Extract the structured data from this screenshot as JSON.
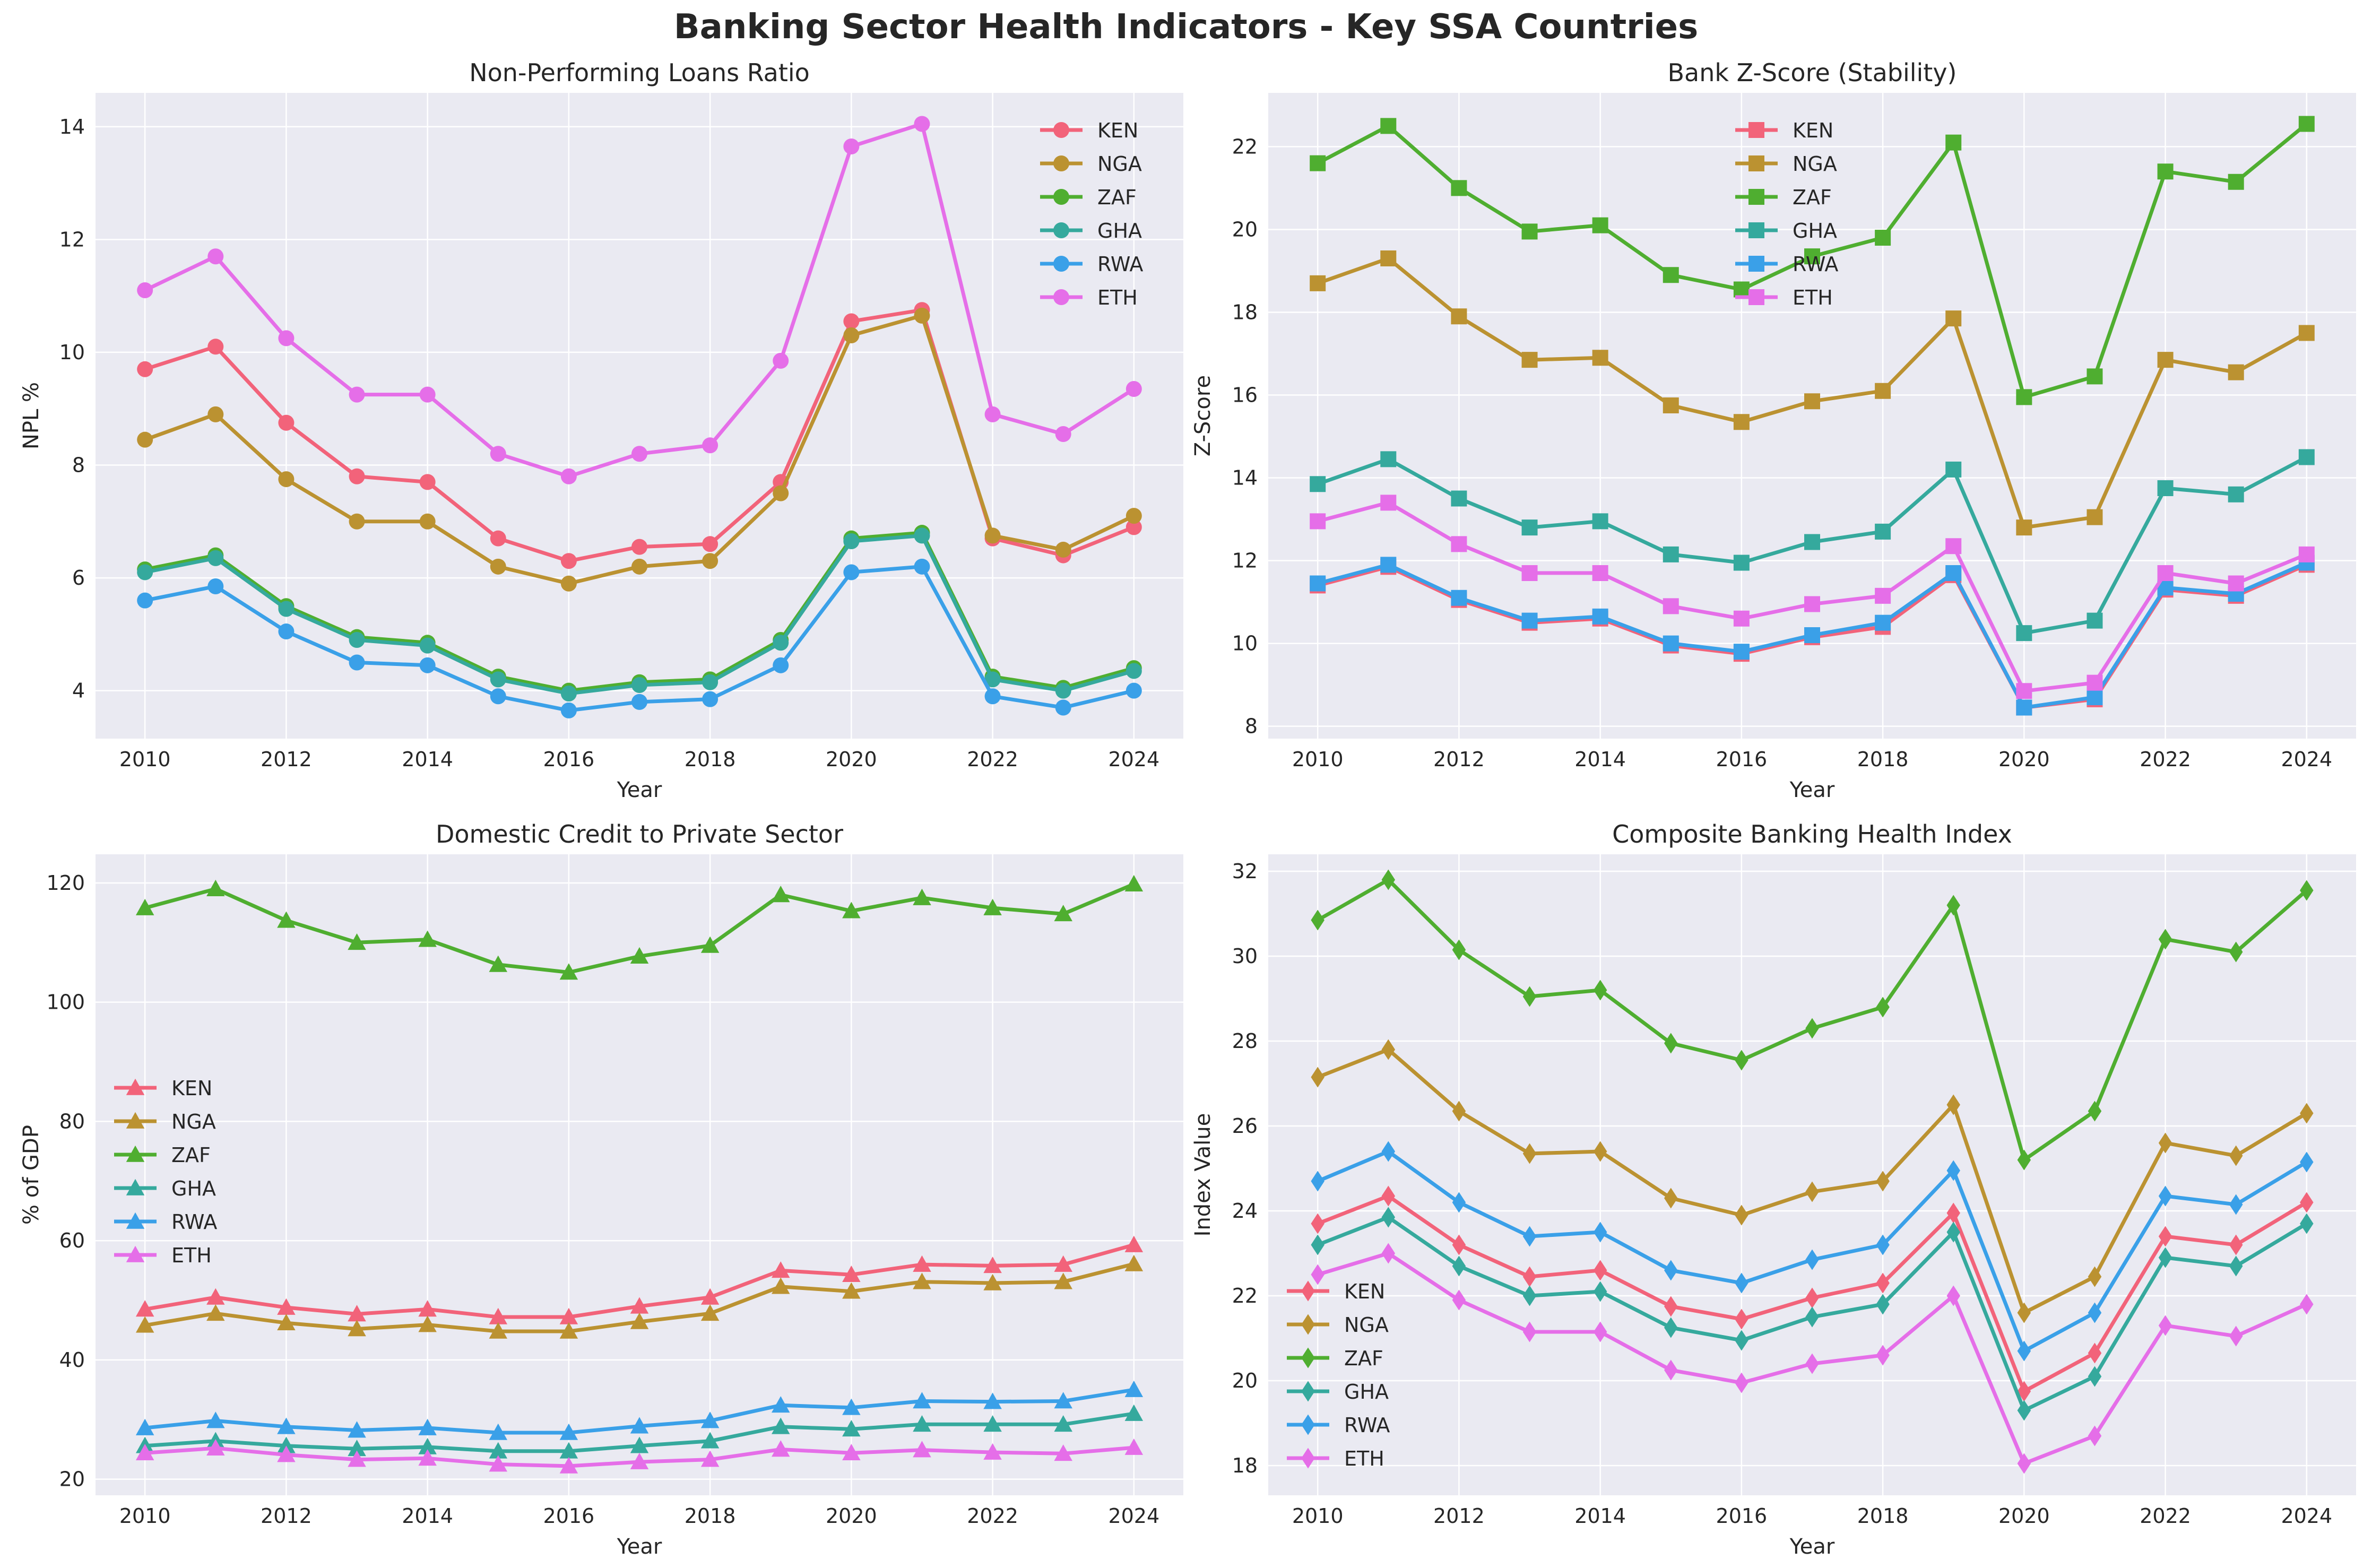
{
  "figure_title": "Banking Sector Health Indicators - Key SSA Countries",
  "colors": {
    "KEN": "#f2637a",
    "NGA": "#bb9231",
    "ZAF": "#4fae30",
    "GHA": "#35a99d",
    "RWA": "#3aa0e8",
    "ETH": "#e56ee8",
    "panel_bg": "#eaeaf2",
    "grid": "#ffffff"
  },
  "chart_data": [
    {
      "type": "line",
      "title": "Non-Performing Loans Ratio",
      "xlabel": "Year",
      "ylabel": "NPL %",
      "marker": "circle",
      "x": [
        2010,
        2011,
        2012,
        2013,
        2014,
        2015,
        2016,
        2017,
        2018,
        2019,
        2020,
        2021,
        2022,
        2023,
        2024
      ],
      "xlim": [
        2009.3,
        2024.7
      ],
      "ylim": [
        3.15,
        14.6
      ],
      "xticks": [
        2010,
        2012,
        2014,
        2016,
        2018,
        2020,
        2022,
        2024
      ],
      "yticks": [
        4,
        6,
        8,
        10,
        12,
        14
      ],
      "grid": true,
      "legend": "top-right",
      "series": [
        {
          "name": "KEN",
          "values": [
            9.7,
            10.1,
            8.75,
            7.8,
            7.7,
            6.7,
            6.3,
            6.55,
            6.6,
            7.7,
            10.55,
            10.75,
            6.7,
            6.4,
            6.9
          ]
        },
        {
          "name": "NGA",
          "values": [
            8.45,
            8.9,
            7.75,
            7.0,
            7.0,
            6.2,
            5.9,
            6.2,
            6.3,
            7.5,
            10.3,
            10.65,
            6.75,
            6.5,
            7.1
          ]
        },
        {
          "name": "ZAF",
          "values": [
            6.15,
            6.4,
            5.5,
            4.95,
            4.85,
            4.25,
            4.0,
            4.15,
            4.2,
            4.9,
            6.7,
            6.8,
            4.25,
            4.05,
            4.4
          ]
        },
        {
          "name": "GHA",
          "values": [
            6.1,
            6.35,
            5.45,
            4.9,
            4.8,
            4.2,
            3.95,
            4.1,
            4.15,
            4.85,
            6.65,
            6.75,
            4.2,
            4.0,
            4.35
          ]
        },
        {
          "name": "RWA",
          "values": [
            5.6,
            5.85,
            5.05,
            4.5,
            4.45,
            3.9,
            3.65,
            3.8,
            3.85,
            4.45,
            6.1,
            6.2,
            3.9,
            3.7,
            4.0
          ]
        },
        {
          "name": "ETH",
          "values": [
            11.1,
            11.7,
            10.25,
            9.25,
            9.25,
            8.2,
            7.8,
            8.2,
            8.35,
            9.85,
            13.65,
            14.05,
            8.9,
            8.55,
            9.35
          ]
        }
      ]
    },
    {
      "type": "line",
      "title": "Bank Z-Score (Stability)",
      "xlabel": "Year",
      "ylabel": "Z-Score",
      "marker": "square",
      "x": [
        2010,
        2011,
        2012,
        2013,
        2014,
        2015,
        2016,
        2017,
        2018,
        2019,
        2020,
        2021,
        2022,
        2023,
        2024
      ],
      "xlim": [
        2009.3,
        2024.7
      ],
      "ylim": [
        7.7,
        23.3
      ],
      "xticks": [
        2010,
        2012,
        2014,
        2016,
        2018,
        2020,
        2022,
        2024
      ],
      "yticks": [
        8,
        10,
        12,
        14,
        16,
        18,
        20,
        22
      ],
      "grid": true,
      "legend": "upper-center",
      "series": [
        {
          "name": "KEN",
          "values": [
            11.4,
            11.85,
            11.05,
            10.5,
            10.6,
            9.95,
            9.75,
            10.15,
            10.4,
            11.65,
            8.45,
            8.65,
            11.3,
            11.15,
            11.9
          ]
        },
        {
          "name": "NGA",
          "values": [
            18.7,
            19.3,
            17.9,
            16.85,
            16.9,
            15.75,
            15.35,
            15.85,
            16.1,
            17.85,
            12.8,
            13.05,
            16.85,
            16.55,
            17.5
          ]
        },
        {
          "name": "ZAF",
          "values": [
            21.6,
            22.5,
            21.0,
            19.95,
            20.1,
            18.9,
            18.55,
            19.35,
            19.8,
            22.1,
            15.95,
            16.45,
            21.4,
            21.15,
            22.55
          ]
        },
        {
          "name": "GHA",
          "values": [
            13.85,
            14.45,
            13.5,
            12.8,
            12.95,
            12.15,
            11.95,
            12.45,
            12.7,
            14.2,
            10.25,
            10.55,
            13.75,
            13.6,
            14.5
          ]
        },
        {
          "name": "RWA",
          "values": [
            11.45,
            11.9,
            11.1,
            10.55,
            10.65,
            10.0,
            9.8,
            10.2,
            10.5,
            11.7,
            8.45,
            8.7,
            11.35,
            11.2,
            11.95
          ]
        },
        {
          "name": "ETH",
          "values": [
            12.95,
            13.4,
            12.4,
            11.7,
            11.7,
            10.9,
            10.6,
            10.95,
            11.15,
            12.35,
            8.85,
            9.05,
            11.7,
            11.45,
            12.15
          ]
        }
      ]
    },
    {
      "type": "line",
      "title": "Domestic Credit to Private Sector",
      "xlabel": "Year",
      "ylabel": "% of GDP",
      "marker": "triangle",
      "x": [
        2010,
        2011,
        2012,
        2013,
        2014,
        2015,
        2016,
        2017,
        2018,
        2019,
        2020,
        2021,
        2022,
        2023,
        2024
      ],
      "xlim": [
        2009.3,
        2024.7
      ],
      "ylim": [
        17.3,
        124.8
      ],
      "xticks": [
        2010,
        2012,
        2014,
        2016,
        2018,
        2020,
        2022,
        2024
      ],
      "yticks": [
        20,
        40,
        60,
        80,
        100,
        120
      ],
      "grid": true,
      "legend": "center-left",
      "series": [
        {
          "name": "KEN",
          "values": [
            48.5,
            50.5,
            48.8,
            47.7,
            48.5,
            47.2,
            47.2,
            49.0,
            50.5,
            55.0,
            54.3,
            56.0,
            55.8,
            56.0,
            59.3
          ]
        },
        {
          "name": "NGA",
          "values": [
            45.8,
            47.8,
            46.2,
            45.2,
            45.9,
            44.8,
            44.8,
            46.4,
            47.8,
            52.3,
            51.5,
            53.1,
            52.9,
            53.1,
            56.1
          ]
        },
        {
          "name": "ZAF",
          "values": [
            115.8,
            119.0,
            113.7,
            110.0,
            110.5,
            106.3,
            105.0,
            107.7,
            109.5,
            118.0,
            115.3,
            117.5,
            115.8,
            114.8,
            119.8
          ]
        },
        {
          "name": "GHA",
          "values": [
            25.6,
            26.4,
            25.6,
            25.1,
            25.4,
            24.7,
            24.7,
            25.6,
            26.4,
            28.8,
            28.4,
            29.2,
            29.2,
            29.2,
            31.0
          ]
        },
        {
          "name": "RWA",
          "values": [
            28.6,
            29.8,
            28.8,
            28.2,
            28.6,
            27.8,
            27.8,
            28.9,
            29.8,
            32.4,
            32.0,
            33.1,
            33.0,
            33.1,
            35.0
          ]
        },
        {
          "name": "ETH",
          "values": [
            24.4,
            25.2,
            24.1,
            23.3,
            23.5,
            22.5,
            22.2,
            22.9,
            23.3,
            25.0,
            24.4,
            24.9,
            24.5,
            24.3,
            25.3
          ]
        }
      ]
    },
    {
      "type": "line",
      "title": "Composite Banking Health Index",
      "xlabel": "Year",
      "ylabel": "Index Value",
      "marker": "diamond",
      "x": [
        2010,
        2011,
        2012,
        2013,
        2014,
        2015,
        2016,
        2017,
        2018,
        2019,
        2020,
        2021,
        2022,
        2023,
        2024
      ],
      "xlim": [
        2009.3,
        2024.7
      ],
      "ylim": [
        17.3,
        32.4
      ],
      "xticks": [
        2010,
        2012,
        2014,
        2016,
        2018,
        2020,
        2022,
        2024
      ],
      "yticks": [
        18,
        20,
        22,
        24,
        26,
        28,
        30,
        32
      ],
      "grid": true,
      "legend": "lower-left",
      "series": [
        {
          "name": "KEN",
          "values": [
            23.7,
            24.35,
            23.2,
            22.45,
            22.6,
            21.75,
            21.45,
            21.95,
            22.3,
            23.95,
            19.75,
            20.65,
            23.4,
            23.2,
            24.2
          ]
        },
        {
          "name": "NGA",
          "values": [
            27.15,
            27.8,
            26.35,
            25.35,
            25.4,
            24.3,
            23.9,
            24.45,
            24.7,
            26.5,
            21.6,
            22.45,
            25.6,
            25.3,
            26.3
          ]
        },
        {
          "name": "ZAF",
          "values": [
            30.85,
            31.8,
            30.15,
            29.05,
            29.2,
            27.95,
            27.55,
            28.3,
            28.8,
            31.2,
            25.2,
            26.35,
            30.4,
            30.1,
            31.55
          ]
        },
        {
          "name": "GHA",
          "values": [
            23.2,
            23.85,
            22.7,
            22.0,
            22.1,
            21.25,
            20.95,
            21.5,
            21.8,
            23.5,
            19.3,
            20.1,
            22.9,
            22.7,
            23.7
          ]
        },
        {
          "name": "RWA",
          "values": [
            24.7,
            25.4,
            24.2,
            23.4,
            23.5,
            22.6,
            22.3,
            22.85,
            23.2,
            24.95,
            20.7,
            21.6,
            24.35,
            24.15,
            25.15
          ]
        },
        {
          "name": "ETH",
          "values": [
            22.5,
            23.0,
            21.9,
            21.15,
            21.15,
            20.25,
            19.95,
            20.4,
            20.6,
            22.0,
            18.05,
            18.7,
            21.3,
            21.05,
            21.8
          ]
        }
      ]
    }
  ]
}
